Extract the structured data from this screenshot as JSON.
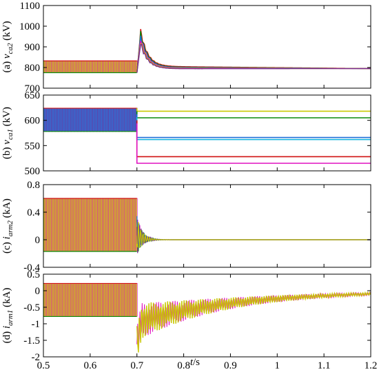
{
  "figure": {
    "xaxis_label_italic": "t",
    "xaxis_label_rest": "/s",
    "colors": [
      "#d01111",
      "#0a8a0a",
      "#1e6fd9",
      "#e010c0",
      "#c8c800",
      "#7a2a90",
      "#15b5e0"
    ]
  },
  "chart_data": [
    {
      "type": "line",
      "panel": "a",
      "ylabel": {
        "prefix": "(a) ",
        "var": "v",
        "sub": "ca2",
        "unit": " (kV)"
      },
      "xlim": [
        0.5,
        1.2
      ],
      "ylim": [
        700,
        1100
      ],
      "yticks": [
        "700",
        "800",
        "900",
        "1000",
        "1100"
      ],
      "xticks": [
        "0.5",
        "0.6",
        "0.7",
        "0.8",
        "0.9",
        "1",
        "1.1",
        "1.2"
      ],
      "grid": false,
      "fault_time": 0.7,
      "pre_fault_band": [
        775,
        832
      ],
      "peak": 975,
      "settle_values": [
        805,
        802,
        800,
        798,
        796,
        794
      ],
      "final_value": 795
    },
    {
      "type": "line",
      "panel": "b",
      "ylabel": {
        "prefix": "(b) ",
        "var": "v",
        "sub": "ca1",
        "unit": " (kV)"
      },
      "xlim": [
        0.5,
        1.2
      ],
      "ylim": [
        500,
        650
      ],
      "yticks": [
        "500",
        "550",
        "600",
        "650"
      ],
      "xticks": [
        "0.5",
        "0.6",
        "0.7",
        "0.8",
        "0.9",
        "1",
        "1.1",
        "1.2"
      ],
      "grid": false,
      "fault_time": 0.7,
      "pre_fault_band": [
        578,
        624
      ],
      "post_fault_levels": [
        618,
        605,
        566,
        562,
        528,
        515
      ]
    },
    {
      "type": "line",
      "panel": "c",
      "ylabel": {
        "prefix": "(c) ",
        "var": "i",
        "sub": "arm2",
        "unit": " (kA)"
      },
      "xlim": [
        0.5,
        1.2
      ],
      "ylim": [
        -0.4,
        0.8
      ],
      "yticks": [
        "-0.4",
        "0",
        "0.4",
        "0.8"
      ],
      "xticks": [
        "0.5",
        "0.6",
        "0.7",
        "0.8",
        "0.9",
        "1",
        "1.1",
        "1.2"
      ],
      "grid": false,
      "fault_time": 0.7,
      "pre_fault_band": [
        -0.17,
        0.6
      ],
      "transient_min": -0.22,
      "transient_max": 0.35,
      "settle_value": 0.0
    },
    {
      "type": "line",
      "panel": "d",
      "ylabel": {
        "prefix": "(d) ",
        "var": "i",
        "sub": "arm1",
        "unit": " (kA)"
      },
      "xlim": [
        0.5,
        1.2
      ],
      "ylim": [
        -2,
        0.5
      ],
      "yticks": [
        "-2",
        "-1.5",
        "-1",
        "-0.5",
        "0",
        "0.5"
      ],
      "xticks": [
        "0.5",
        "0.6",
        "0.7",
        "0.8",
        "0.9",
        "1",
        "1.1",
        "1.2"
      ],
      "grid": false,
      "fault_time": 0.7,
      "pre_fault_band": [
        -0.78,
        0.22
      ],
      "transient_min": -1.62,
      "final_value": 0.0
    }
  ]
}
